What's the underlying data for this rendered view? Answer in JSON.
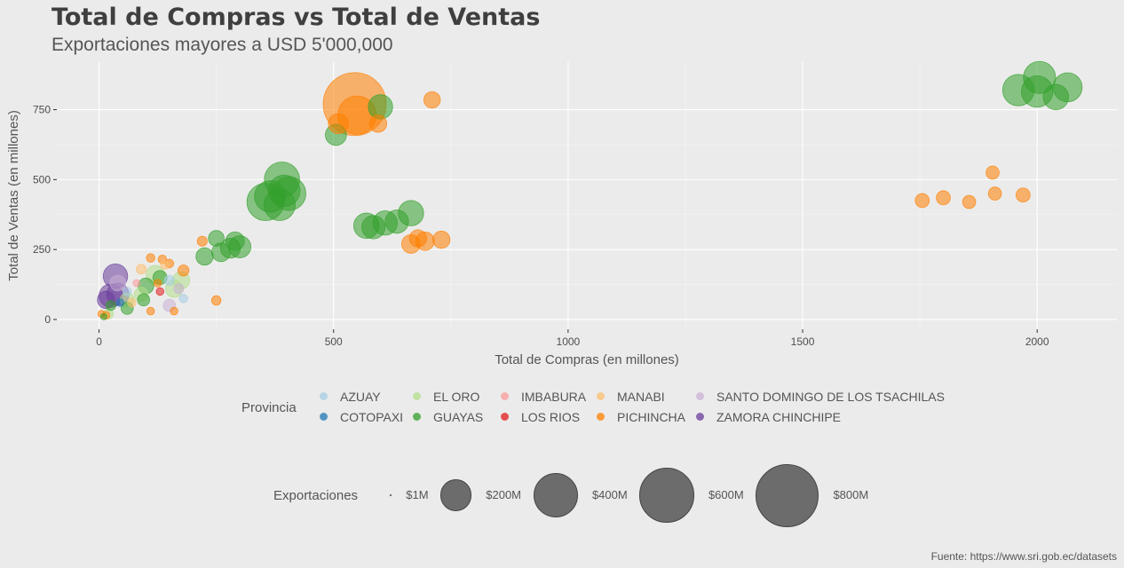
{
  "chart_data": {
    "type": "scatter",
    "title": "Total de Compras vs Total de Ventas",
    "subtitle": "Exportaciones mayores a USD 5'000,000",
    "xlabel": "Total de Compras (en millones)",
    "ylabel": "Total de Ventas (en millones)",
    "caption": "Fuente: https://www.sri.gob.ec/datasets",
    "xlim": [
      -90,
      2170
    ],
    "ylim": [
      -35,
      920
    ],
    "x_ticks": [
      0,
      500,
      1000,
      1500,
      2000
    ],
    "y_ticks": [
      0,
      250,
      500,
      750
    ],
    "grid": true,
    "legend_position": "bottom",
    "color_legend_title": "Provincia",
    "size_legend_title": "Exportaciones",
    "size_legend": [
      {
        "label": "$1M",
        "value": 1
      },
      {
        "label": "$200M",
        "value": 200
      },
      {
        "label": "$400M",
        "value": 400
      },
      {
        "label": "$600M",
        "value": 600
      },
      {
        "label": "$800M",
        "value": 800
      }
    ],
    "provinces": [
      {
        "name": "AZUAY",
        "color": "#a6cee3"
      },
      {
        "name": "COTOPAXI",
        "color": "#1f78b4"
      },
      {
        "name": "EL ORO",
        "color": "#b2df8a"
      },
      {
        "name": "GUAYAS",
        "color": "#33a02c"
      },
      {
        "name": "IMBABURA",
        "color": "#fb9a99"
      },
      {
        "name": "LOS RIOS",
        "color": "#e31a1c"
      },
      {
        "name": "MANABI",
        "color": "#fdbf6f"
      },
      {
        "name": "PICHINCHA",
        "color": "#ff7f00"
      },
      {
        "name": "SANTO DOMINGO DE LOS TSACHILAS",
        "color": "#cab2d6"
      },
      {
        "name": "ZAMORA CHINCHIPE",
        "color": "#6a3d9a"
      }
    ],
    "points": [
      {
        "p": "GUAYAS",
        "x": 1960,
        "y": 820,
        "s": 200
      },
      {
        "p": "GUAYAS",
        "x": 2005,
        "y": 865,
        "s": 210
      },
      {
        "p": "GUAYAS",
        "x": 2000,
        "y": 815,
        "s": 200
      },
      {
        "p": "GUAYAS",
        "x": 2065,
        "y": 830,
        "s": 170
      },
      {
        "p": "GUAYAS",
        "x": 2040,
        "y": 795,
        "s": 130
      },
      {
        "p": "PICHINCHA",
        "x": 1755,
        "y": 425,
        "s": 40
      },
      {
        "p": "PICHINCHA",
        "x": 1800,
        "y": 435,
        "s": 40
      },
      {
        "p": "PICHINCHA",
        "x": 1855,
        "y": 420,
        "s": 35
      },
      {
        "p": "PICHINCHA",
        "x": 1905,
        "y": 525,
        "s": 35
      },
      {
        "p": "PICHINCHA",
        "x": 1910,
        "y": 450,
        "s": 35
      },
      {
        "p": "PICHINCHA",
        "x": 1970,
        "y": 445,
        "s": 40
      },
      {
        "p": "PICHINCHA",
        "x": 545,
        "y": 770,
        "s": 800
      },
      {
        "p": "PICHINCHA",
        "x": 550,
        "y": 730,
        "s": 300
      },
      {
        "p": "PICHINCHA",
        "x": 510,
        "y": 700,
        "s": 80
      },
      {
        "p": "PICHINCHA",
        "x": 595,
        "y": 700,
        "s": 60
      },
      {
        "p": "PICHINCHA",
        "x": 710,
        "y": 785,
        "s": 55
      },
      {
        "p": "GUAYAS",
        "x": 600,
        "y": 760,
        "s": 120
      },
      {
        "p": "GUAYAS",
        "x": 505,
        "y": 660,
        "s": 90
      },
      {
        "p": "GUAYAS",
        "x": 355,
        "y": 420,
        "s": 280
      },
      {
        "p": "GUAYAS",
        "x": 365,
        "y": 440,
        "s": 200
      },
      {
        "p": "GUAYAS",
        "x": 390,
        "y": 500,
        "s": 250
      },
      {
        "p": "GUAYAS",
        "x": 395,
        "y": 460,
        "s": 200
      },
      {
        "p": "GUAYAS",
        "x": 405,
        "y": 450,
        "s": 230
      },
      {
        "p": "GUAYAS",
        "x": 385,
        "y": 410,
        "s": 200
      },
      {
        "p": "GUAYAS",
        "x": 570,
        "y": 335,
        "s": 130
      },
      {
        "p": "GUAYAS",
        "x": 585,
        "y": 330,
        "s": 110
      },
      {
        "p": "GUAYAS",
        "x": 610,
        "y": 345,
        "s": 120
      },
      {
        "p": "GUAYAS",
        "x": 635,
        "y": 350,
        "s": 110
      },
      {
        "p": "GUAYAS",
        "x": 665,
        "y": 380,
        "s": 130
      },
      {
        "p": "PICHINCHA",
        "x": 665,
        "y": 270,
        "s": 70
      },
      {
        "p": "PICHINCHA",
        "x": 680,
        "y": 290,
        "s": 60
      },
      {
        "p": "PICHINCHA",
        "x": 695,
        "y": 280,
        "s": 70
      },
      {
        "p": "PICHINCHA",
        "x": 730,
        "y": 285,
        "s": 60
      },
      {
        "p": "GUAYAS",
        "x": 225,
        "y": 225,
        "s": 60
      },
      {
        "p": "GUAYAS",
        "x": 260,
        "y": 240,
        "s": 70
      },
      {
        "p": "GUAYAS",
        "x": 280,
        "y": 255,
        "s": 80
      },
      {
        "p": "GUAYAS",
        "x": 300,
        "y": 260,
        "s": 100
      },
      {
        "p": "GUAYAS",
        "x": 290,
        "y": 280,
        "s": 70
      },
      {
        "p": "GUAYAS",
        "x": 250,
        "y": 290,
        "s": 50
      },
      {
        "p": "PICHINCHA",
        "x": 220,
        "y": 280,
        "s": 20
      },
      {
        "p": "PICHINCHA",
        "x": 250,
        "y": 68,
        "s": 18
      },
      {
        "p": "ZAMORA CHINCHIPE",
        "x": 35,
        "y": 155,
        "s": 120
      },
      {
        "p": "ZAMORA CHINCHIPE",
        "x": 25,
        "y": 85,
        "s": 110
      },
      {
        "p": "ZAMORA CHINCHIPE",
        "x": 40,
        "y": 90,
        "s": 100
      },
      {
        "p": "ZAMORA CHINCHIPE",
        "x": 15,
        "y": 70,
        "s": 60
      },
      {
        "p": "SANTO DOMINGO DE LOS TSACHILAS",
        "x": 40,
        "y": 130,
        "s": 50
      },
      {
        "p": "SANTO DOMINGO DE LOS TSACHILAS",
        "x": 150,
        "y": 50,
        "s": 30
      },
      {
        "p": "SANTO DOMINGO DE LOS TSACHILAS",
        "x": 170,
        "y": 110,
        "s": 20
      },
      {
        "p": "AZUAY",
        "x": 180,
        "y": 75,
        "s": 15
      },
      {
        "p": "AZUAY",
        "x": 150,
        "y": 140,
        "s": 20
      },
      {
        "p": "AZUAY",
        "x": 60,
        "y": 100,
        "s": 15
      },
      {
        "p": "EL ORO",
        "x": 120,
        "y": 160,
        "s": 70
      },
      {
        "p": "EL ORO",
        "x": 160,
        "y": 110,
        "s": 60
      },
      {
        "p": "EL ORO",
        "x": 175,
        "y": 140,
        "s": 60
      },
      {
        "p": "EL ORO",
        "x": 90,
        "y": 90,
        "s": 40
      },
      {
        "p": "EL ORO",
        "x": 60,
        "y": 70,
        "s": 40
      },
      {
        "p": "EL ORO",
        "x": 20,
        "y": 20,
        "s": 20
      },
      {
        "p": "GUAYAS",
        "x": 100,
        "y": 120,
        "s": 50
      },
      {
        "p": "GUAYAS",
        "x": 130,
        "y": 150,
        "s": 40
      },
      {
        "p": "GUAYAS",
        "x": 95,
        "y": 70,
        "s": 30
      },
      {
        "p": "GUAYAS",
        "x": 60,
        "y": 40,
        "s": 30
      },
      {
        "p": "GUAYAS",
        "x": 10,
        "y": 10,
        "s": 8
      },
      {
        "p": "GUAYAS",
        "x": 25,
        "y": 50,
        "s": 20
      },
      {
        "p": "PICHINCHA",
        "x": 110,
        "y": 220,
        "s": 15
      },
      {
        "p": "PICHINCHA",
        "x": 135,
        "y": 215,
        "s": 15
      },
      {
        "p": "PICHINCHA",
        "x": 150,
        "y": 200,
        "s": 15
      },
      {
        "p": "PICHINCHA",
        "x": 180,
        "y": 175,
        "s": 25
      },
      {
        "p": "PICHINCHA",
        "x": 125,
        "y": 130,
        "s": 12
      },
      {
        "p": "PICHINCHA",
        "x": 160,
        "y": 30,
        "s": 12
      },
      {
        "p": "PICHINCHA",
        "x": 110,
        "y": 30,
        "s": 12
      },
      {
        "p": "PICHINCHA",
        "x": 15,
        "y": 15,
        "s": 12
      },
      {
        "p": "PICHINCHA",
        "x": 5,
        "y": 20,
        "s": 10
      },
      {
        "p": "MANABI",
        "x": 90,
        "y": 180,
        "s": 20
      },
      {
        "p": "MANABI",
        "x": 140,
        "y": 195,
        "s": 15
      },
      {
        "p": "MANABI",
        "x": 70,
        "y": 60,
        "s": 15
      },
      {
        "p": "IMBABURA",
        "x": 80,
        "y": 130,
        "s": 10
      },
      {
        "p": "LOS RIOS",
        "x": 130,
        "y": 100,
        "s": 12
      },
      {
        "p": "COTOPAXI",
        "x": 45,
        "y": 60,
        "s": 12
      }
    ]
  }
}
